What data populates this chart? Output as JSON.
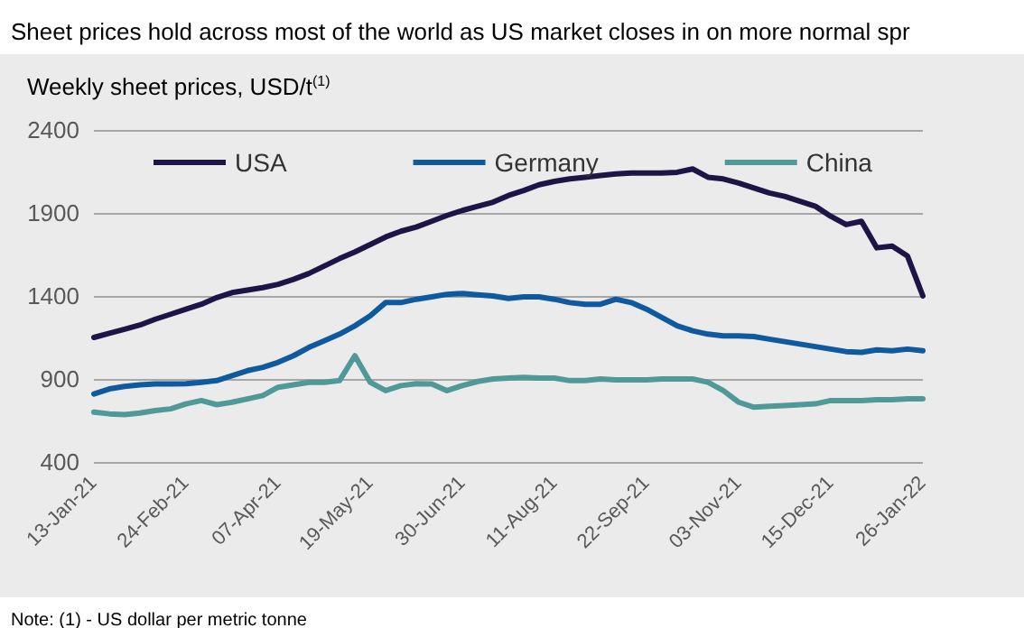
{
  "chart_data": {
    "type": "line",
    "title": "Sheet prices hold across most of the world as US market closes in on more normal spr",
    "subtitle": "Weekly sheet prices, USD/t$^{(1)}$",
    "annotations": [
      "Note: (1) - US dollar per metric tonne"
    ],
    "categories": [
      "13-Jan-21",
      null,
      null,
      null,
      null,
      null,
      "24-Feb-21",
      null,
      null,
      null,
      null,
      null,
      "07-Apr-21",
      null,
      null,
      null,
      null,
      null,
      "19-May-21",
      null,
      null,
      null,
      null,
      null,
      "30-Jun-21",
      null,
      null,
      null,
      null,
      null,
      "11-Aug-21",
      null,
      null,
      null,
      null,
      null,
      "22-Sep-21",
      null,
      null,
      null,
      null,
      null,
      "03-Nov-21",
      null,
      null,
      null,
      null,
      null,
      "15-Dec-21",
      null,
      null,
      null,
      null,
      null,
      "26-Jan-22"
    ],
    "series": [
      {
        "name": "USA",
        "color": "#1f1446",
        "values": [
          1150,
          1175,
          1200,
          1225,
          1260,
          1290,
          1320,
          1350,
          1390,
          1420,
          1435,
          1450,
          1470,
          1500,
          1535,
          1580,
          1625,
          1665,
          1710,
          1755,
          1790,
          1815,
          1850,
          1885,
          1915,
          1940,
          1965,
          2005,
          2035,
          2070,
          2090,
          2105,
          2115,
          2125,
          2135,
          2140,
          2140,
          2140,
          2145,
          2165,
          2115,
          2105,
          2080,
          2050,
          2020,
          2000,
          1970,
          1940,
          1880,
          1830,
          1850,
          1690,
          1700,
          1640,
          1400
        ]
      },
      {
        "name": "Germany",
        "color": "#0f5a9e",
        "values": [
          810,
          840,
          855,
          865,
          870,
          870,
          872,
          880,
          890,
          920,
          950,
          970,
          1000,
          1040,
          1090,
          1130,
          1170,
          1220,
          1280,
          1360,
          1360,
          1380,
          1395,
          1410,
          1415,
          1407,
          1400,
          1385,
          1395,
          1395,
          1380,
          1360,
          1350,
          1350,
          1380,
          1360,
          1320,
          1270,
          1220,
          1190,
          1170,
          1160,
          1160,
          1155,
          1140,
          1125,
          1110,
          1095,
          1080,
          1065,
          1060,
          1075,
          1070,
          1080,
          1070
        ]
      },
      {
        "name": "China",
        "color": "#4f9a98",
        "values": [
          700,
          690,
          685,
          695,
          710,
          720,
          750,
          770,
          745,
          760,
          780,
          800,
          850,
          865,
          880,
          880,
          890,
          1040,
          880,
          830,
          860,
          872,
          870,
          830,
          860,
          885,
          900,
          905,
          910,
          905,
          905,
          890,
          890,
          900,
          895,
          895,
          895,
          900,
          900,
          900,
          880,
          830,
          760,
          730,
          735,
          740,
          745,
          750,
          770,
          770,
          770,
          775,
          775,
          780,
          780
        ]
      }
    ],
    "ylim": [
      400,
      2400
    ],
    "yticks": [
      400,
      900,
      1400,
      1900,
      2400
    ],
    "grid": "y",
    "legend": "top"
  }
}
